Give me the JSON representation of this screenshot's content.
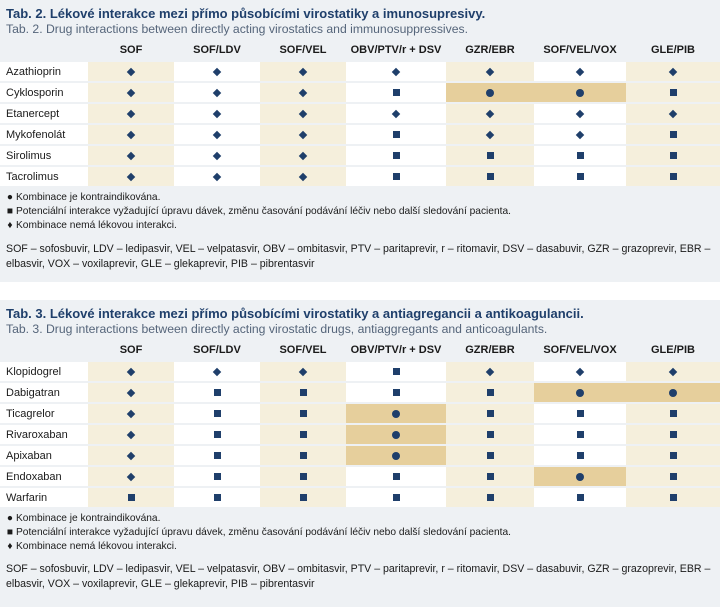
{
  "columns": [
    "SOF",
    "SOF/LDV",
    "SOF/VEL",
    "OBV/PTV/r + DSV",
    "GZR/EBR",
    "SOF/VEL/VOX",
    "GLE/PIB"
  ],
  "symbols": {
    "diamond": "♦",
    "square": "■",
    "dot": "●"
  },
  "colors": {
    "navy": "#1f3f6b",
    "cream": "#f5efdc",
    "tan": "#e6cf9c",
    "panel": "#eef1f4"
  },
  "legend": {
    "dot": "Kombinace je kontraindikována.",
    "square": "Potenciální interakce vyžadující úpravu dávek, změnu časování podávání léčiv nebo další sledování pacienta.",
    "diamond": "Kombinace nemá lékovou interakci."
  },
  "abbreviations": "SOF – sofosbuvir, LDV – ledipasvir, VEL – velpatasvir, OBV – ombitasvir, PTV – paritaprevir, r – ritomavir, DSV – dasabuvir, GZR – grazoprevir, EBR – elbasvir, VOX – voxilaprevir, GLE – glekaprevir, PIB – pibrentasvir",
  "table2": {
    "title": "Tab. 2. Lékové interakce mezi přímo působícími virostatiky a imunosupresivy.",
    "subtitle": "Tab. 2. Drug interactions between directly acting virostatics and immunosuppressives.",
    "rows": [
      {
        "drug": "Azathioprin",
        "cells": [
          "diamond",
          "diamond",
          "diamond",
          "diamond",
          "diamond",
          "diamond",
          "diamond"
        ],
        "highlight": [
          false,
          false,
          false,
          false,
          false,
          false,
          false
        ]
      },
      {
        "drug": "Cyklosporin",
        "cells": [
          "diamond",
          "diamond",
          "diamond",
          "square",
          "dot",
          "dot",
          "square"
        ],
        "highlight": [
          false,
          false,
          false,
          false,
          true,
          true,
          false
        ]
      },
      {
        "drug": "Etanercept",
        "cells": [
          "diamond",
          "diamond",
          "diamond",
          "diamond",
          "diamond",
          "diamond",
          "diamond"
        ],
        "highlight": [
          false,
          false,
          false,
          false,
          false,
          false,
          false
        ]
      },
      {
        "drug": "Mykofenolát",
        "cells": [
          "diamond",
          "diamond",
          "diamond",
          "square",
          "diamond",
          "diamond",
          "square"
        ],
        "highlight": [
          false,
          false,
          false,
          false,
          false,
          false,
          false
        ]
      },
      {
        "drug": "Sirolimus",
        "cells": [
          "diamond",
          "diamond",
          "diamond",
          "square",
          "square",
          "square",
          "square"
        ],
        "highlight": [
          false,
          false,
          false,
          false,
          false,
          false,
          false
        ]
      },
      {
        "drug": "Tacrolimus",
        "cells": [
          "diamond",
          "diamond",
          "diamond",
          "square",
          "square",
          "square",
          "square"
        ],
        "highlight": [
          false,
          false,
          false,
          false,
          false,
          false,
          false
        ]
      }
    ]
  },
  "table3": {
    "title": "Tab. 3. Lékové interakce mezi přímo působícími virostatiky a antiagregancii a antikoagulancii.",
    "subtitle": "Tab. 3. Drug interactions between directly acting virostatic drugs, antiaggregants and anticoagulants.",
    "rows": [
      {
        "drug": "Klopidogrel",
        "cells": [
          "diamond",
          "diamond",
          "diamond",
          "square",
          "diamond",
          "diamond",
          "diamond"
        ],
        "highlight": [
          false,
          false,
          false,
          false,
          false,
          false,
          false
        ]
      },
      {
        "drug": "Dabigatran",
        "cells": [
          "diamond",
          "square",
          "square",
          "square",
          "square",
          "dot",
          "dot"
        ],
        "highlight": [
          false,
          false,
          false,
          false,
          false,
          true,
          true
        ]
      },
      {
        "drug": "Ticagrelor",
        "cells": [
          "diamond",
          "square",
          "square",
          "dot",
          "square",
          "square",
          "square"
        ],
        "highlight": [
          false,
          false,
          false,
          true,
          false,
          false,
          false
        ]
      },
      {
        "drug": "Rivaroxaban",
        "cells": [
          "diamond",
          "square",
          "square",
          "dot",
          "square",
          "square",
          "square"
        ],
        "highlight": [
          false,
          false,
          false,
          true,
          false,
          false,
          false
        ]
      },
      {
        "drug": "Apixaban",
        "cells": [
          "diamond",
          "square",
          "square",
          "dot",
          "square",
          "square",
          "square"
        ],
        "highlight": [
          false,
          false,
          false,
          true,
          false,
          false,
          false
        ]
      },
      {
        "drug": "Endoxaban",
        "cells": [
          "diamond",
          "square",
          "square",
          "square",
          "square",
          "dot",
          "square"
        ],
        "highlight": [
          false,
          false,
          false,
          false,
          false,
          true,
          false
        ]
      },
      {
        "drug": "Warfarin",
        "cells": [
          "square",
          "square",
          "square",
          "square",
          "square",
          "square",
          "square"
        ],
        "highlight": [
          false,
          false,
          false,
          false,
          false,
          false,
          false
        ]
      }
    ]
  }
}
